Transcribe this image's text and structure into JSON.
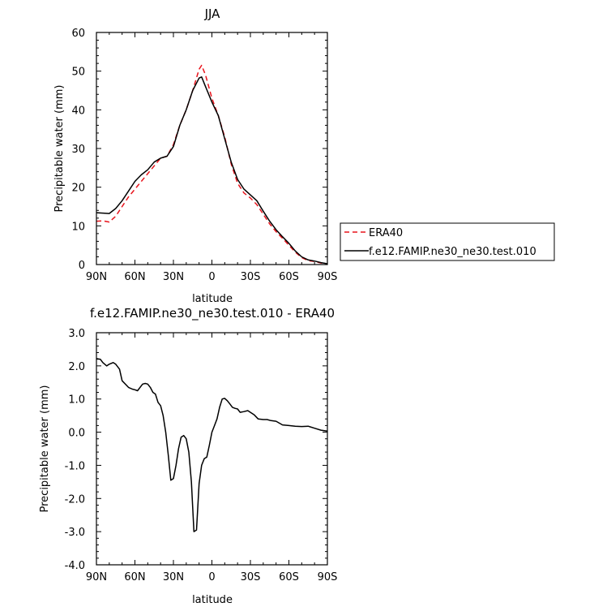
{
  "chart_data": [
    {
      "type": "line",
      "title": "JJA",
      "xlabel": "latitude",
      "ylabel": "Precipitable water (mm)",
      "xlim": [
        90,
        -90
      ],
      "ylim": [
        0,
        60
      ],
      "xticks": [
        90,
        60,
        30,
        0,
        -30,
        -60,
        -90
      ],
      "xtick_labels": [
        "90N",
        "60N",
        "30N",
        "0",
        "30S",
        "60S",
        "90S"
      ],
      "yticks": [
        0,
        10,
        20,
        30,
        40,
        50,
        60
      ],
      "ytick_labels": [
        "0",
        "10",
        "20",
        "30",
        "40",
        "50",
        "60"
      ],
      "legend_position": "outside-right",
      "series": [
        {
          "name": "ERA40",
          "color": "#e8141c",
          "dash": "dashed",
          "x": [
            90,
            85,
            80,
            75,
            70,
            65,
            60,
            55,
            50,
            45,
            40,
            35,
            30,
            25,
            20,
            15,
            10,
            8,
            5,
            0,
            -5,
            -10,
            -15,
            -20,
            -25,
            -30,
            -35,
            -40,
            -45,
            -50,
            -55,
            -60,
            -65,
            -70,
            -75,
            -80,
            -85,
            -90
          ],
          "values": [
            11.2,
            11.3,
            11.0,
            12.5,
            15.0,
            17.5,
            19.5,
            21.5,
            23.5,
            25.5,
            27.5,
            28.0,
            31.0,
            36.0,
            40.0,
            45.0,
            50.5,
            51.5,
            49.0,
            43.0,
            38.5,
            33.0,
            26.0,
            21.0,
            18.5,
            17.2,
            15.5,
            13.0,
            10.5,
            8.5,
            6.8,
            5.0,
            3.2,
            1.8,
            1.0,
            0.8,
            0.4,
            0.2
          ]
        },
        {
          "name": "f.e12.FAMIP.ne30_ne30.test.010",
          "color": "#000000",
          "dash": "solid",
          "x": [
            90,
            85,
            80,
            75,
            70,
            65,
            60,
            55,
            50,
            45,
            40,
            35,
            30,
            25,
            20,
            15,
            10,
            8,
            5,
            0,
            -5,
            -10,
            -15,
            -20,
            -25,
            -30,
            -35,
            -40,
            -45,
            -50,
            -55,
            -60,
            -65,
            -70,
            -75,
            -80,
            -85,
            -90
          ],
          "values": [
            13.4,
            13.3,
            13.2,
            14.5,
            16.5,
            19.0,
            21.5,
            23.2,
            24.5,
            26.5,
            27.5,
            28.0,
            30.5,
            36.0,
            40.0,
            45.0,
            48.2,
            48.5,
            46.0,
            42.0,
            38.5,
            32.5,
            26.5,
            22.0,
            19.5,
            18.0,
            16.5,
            13.8,
            11.2,
            9.0,
            7.2,
            5.5,
            3.5,
            2.0,
            1.2,
            0.9,
            0.5,
            0.2
          ]
        }
      ]
    },
    {
      "type": "line",
      "title": "f.e12.FAMIP.ne30_ne30.test.010 - ERA40",
      "xlabel": "latitude",
      "ylabel": "Precipitable water (mm)",
      "xlim": [
        90,
        -90
      ],
      "ylim": [
        -4,
        3
      ],
      "xticks": [
        90,
        60,
        30,
        0,
        -30,
        -60,
        -90
      ],
      "xtick_labels": [
        "90N",
        "60N",
        "30N",
        "0",
        "30S",
        "60S",
        "90S"
      ],
      "yticks": [
        -4,
        -3,
        -2,
        -1,
        0,
        1,
        2,
        3
      ],
      "ytick_labels": [
        "-4.0",
        "-3.0",
        "-2.0",
        "-1.0",
        "0.0",
        "1.0",
        "2.0",
        "3.0"
      ],
      "series": [
        {
          "color": "#000000",
          "dash": "solid",
          "x": [
            90,
            87,
            85,
            82,
            80,
            77,
            75,
            72,
            70,
            65,
            62,
            60,
            58,
            56,
            54,
            52,
            50,
            48,
            46,
            44,
            42,
            40,
            38,
            36,
            34,
            32,
            30,
            28,
            26,
            24,
            22,
            20,
            18,
            16,
            14,
            12,
            10,
            8,
            6,
            4,
            2,
            0,
            -2,
            -4,
            -6,
            -8,
            -10,
            -12,
            -14,
            -16,
            -18,
            -20,
            -22,
            -25,
            -28,
            -30,
            -33,
            -36,
            -40,
            -43,
            -46,
            -50,
            -55,
            -60,
            -65,
            -70,
            -75,
            -80,
            -85,
            -90
          ],
          "values": [
            2.22,
            2.2,
            2.1,
            2.0,
            2.05,
            2.1,
            2.05,
            1.9,
            1.55,
            1.35,
            1.3,
            1.28,
            1.25,
            1.35,
            1.45,
            1.47,
            1.45,
            1.35,
            1.2,
            1.15,
            0.9,
            0.8,
            0.5,
            0.0,
            -0.7,
            -1.45,
            -1.4,
            -1.0,
            -0.5,
            -0.15,
            -0.1,
            -0.2,
            -0.6,
            -1.5,
            -3.0,
            -2.95,
            -1.55,
            -1.0,
            -0.8,
            -0.75,
            -0.4,
            0.0,
            0.2,
            0.4,
            0.75,
            1.0,
            1.02,
            0.95,
            0.85,
            0.75,
            0.72,
            0.7,
            0.6,
            0.62,
            0.65,
            0.6,
            0.52,
            0.4,
            0.38,
            0.38,
            0.35,
            0.33,
            0.22,
            0.2,
            0.18,
            0.17,
            0.18,
            0.12,
            0.06,
            0.03
          ]
        }
      ]
    }
  ]
}
